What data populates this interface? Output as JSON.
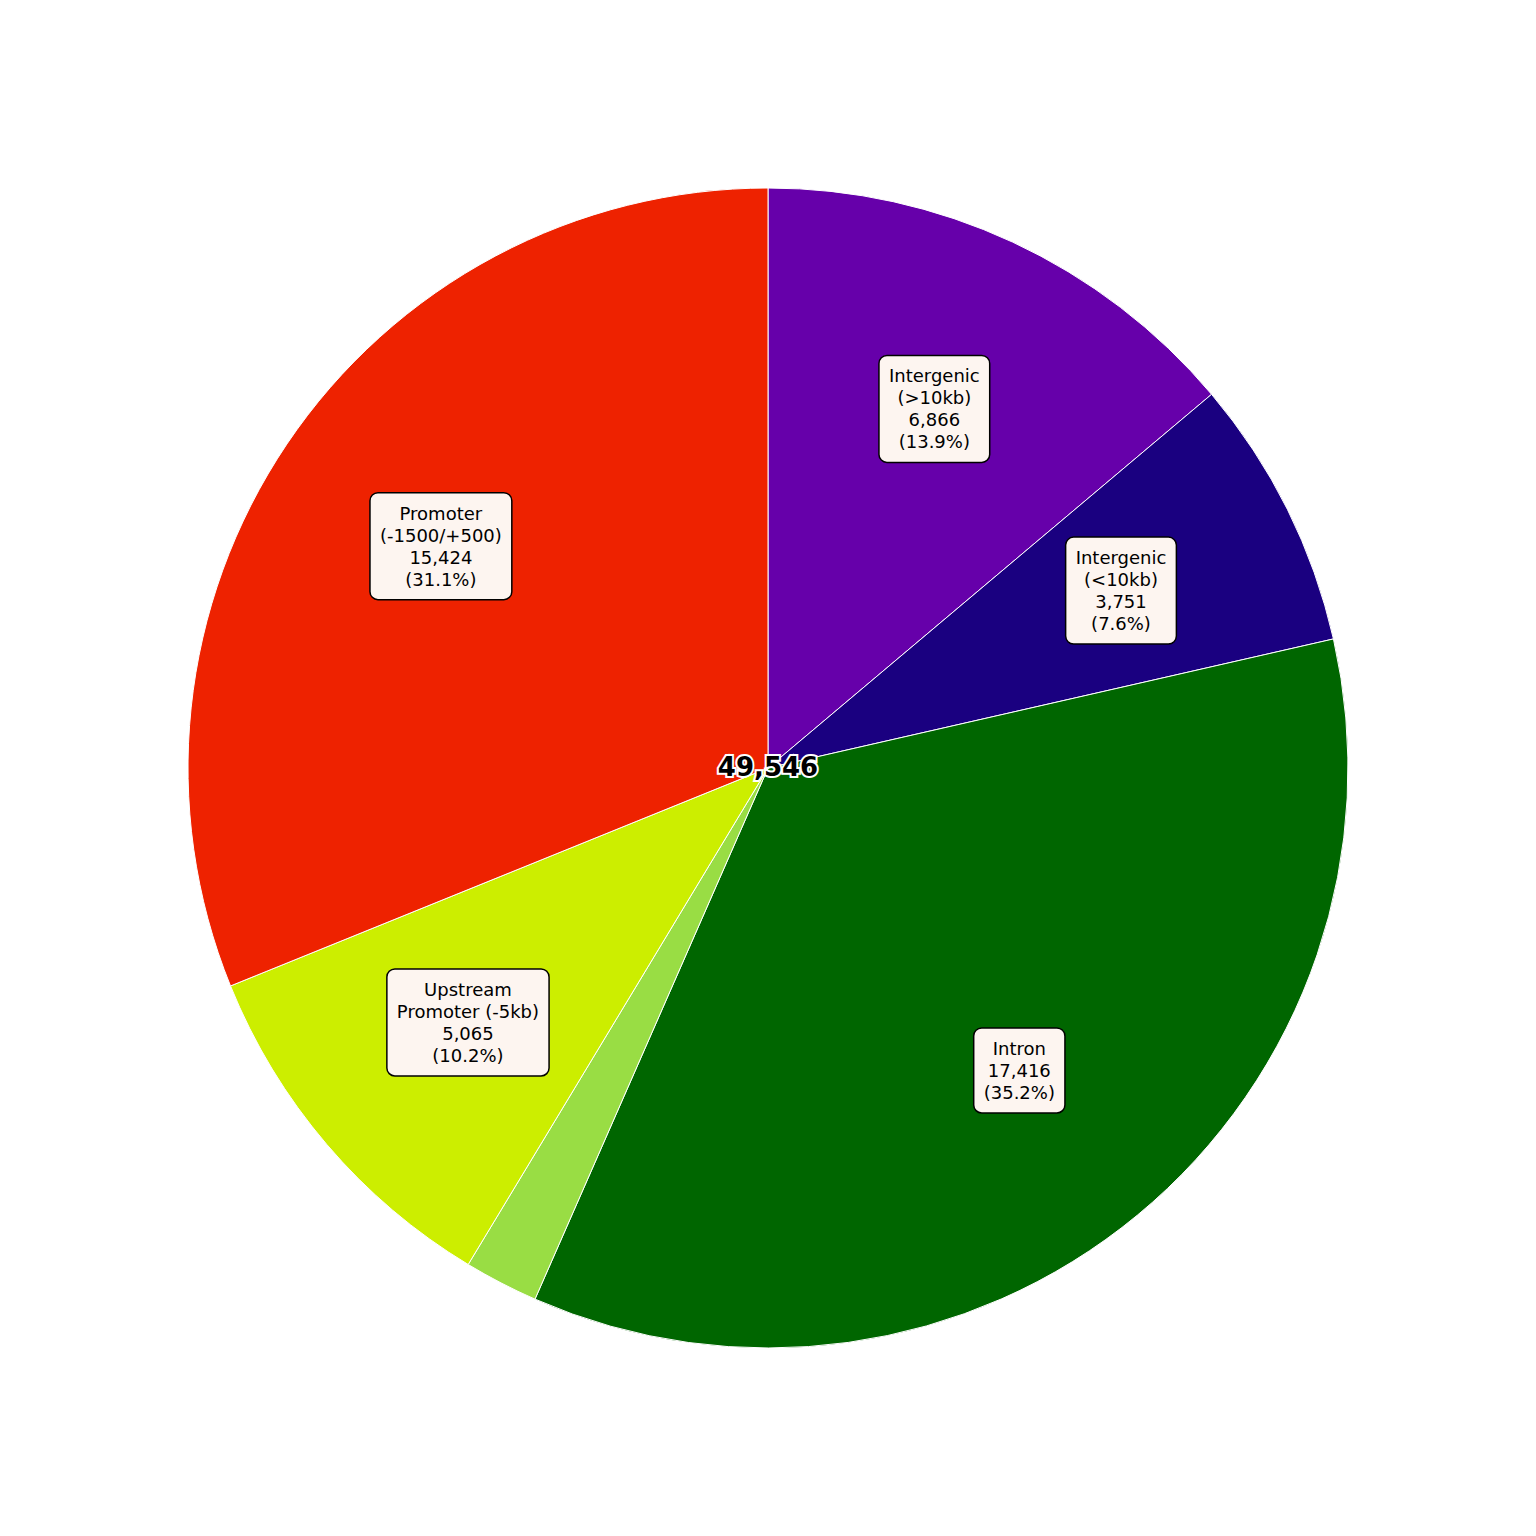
{
  "chart_data": {
    "type": "pie",
    "center_label": "49,546",
    "categories": [
      "Intergenic\n(>10kb)",
      "Intergenic\n(<10kb)",
      "Intron",
      null,
      "Upstream\nPromoter (-5kb)",
      "Promoter\n(-1500/+500)"
    ],
    "values": [
      6866,
      3751,
      17416,
      1024,
      5065,
      15424
    ],
    "value_labels": [
      "6,866\n(13.9%)",
      "3,751\n(7.6%)",
      "17,416\n(35.2%)",
      null,
      "5,065\n(10.2%)",
      "15,424\n(31.1%)"
    ],
    "colors": [
      "#6600aa",
      "#1a0080",
      "#006600",
      "#99dd44",
      "#ccee00",
      "#ee2200"
    ]
  }
}
